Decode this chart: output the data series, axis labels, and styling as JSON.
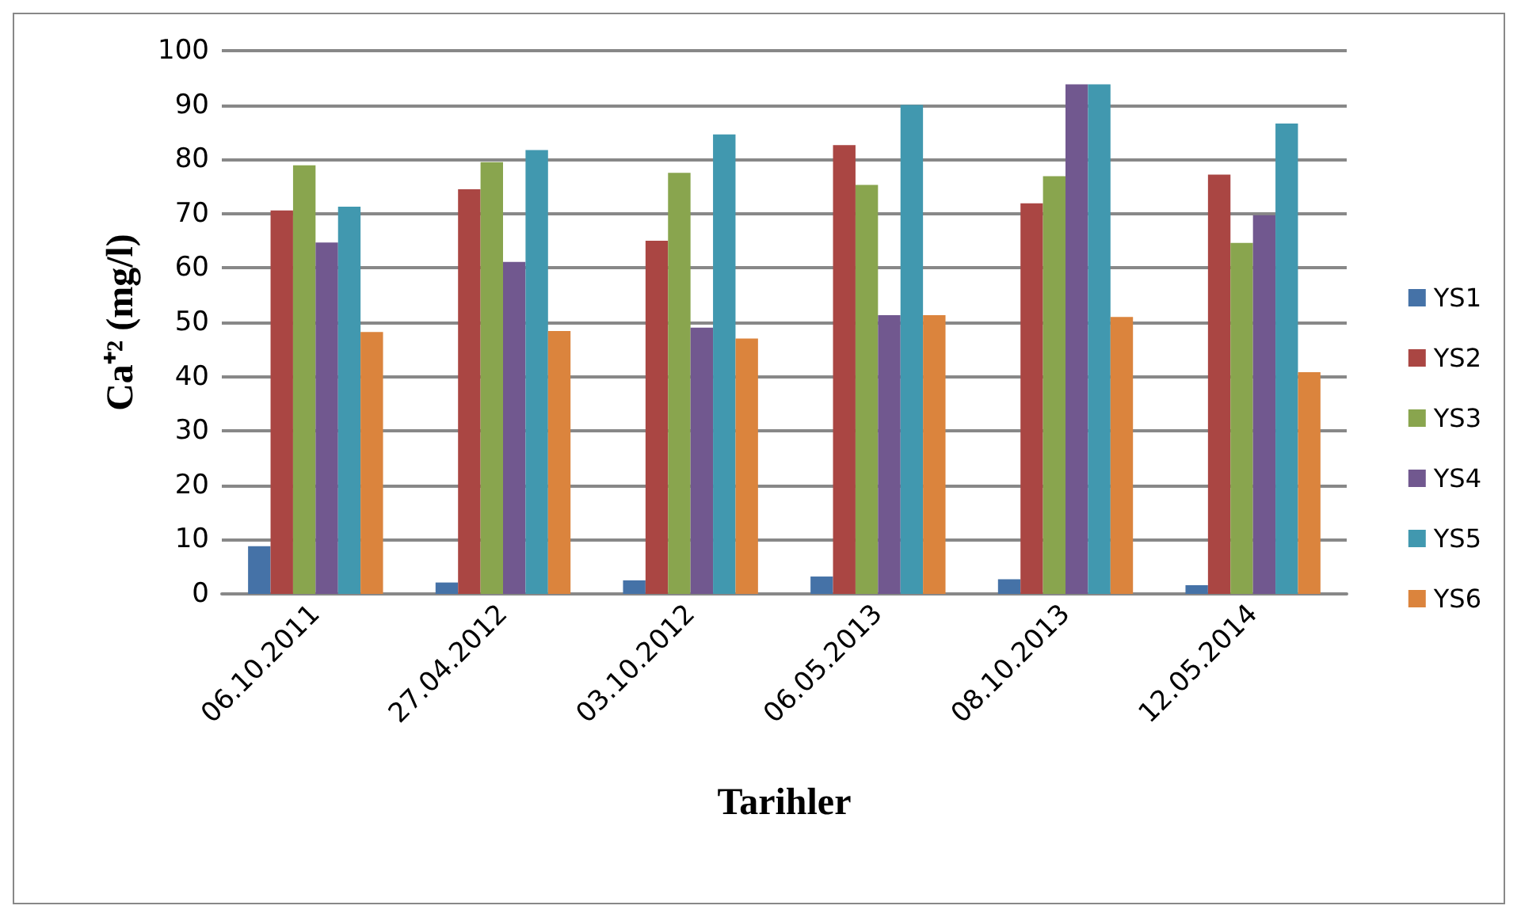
{
  "chart_data": {
    "type": "bar",
    "xlabel": "Tarihler",
    "ylabel": "Ca⁺² (mg/l)",
    "categories": [
      "06.10.2011",
      "27.04.2012",
      "03.10.2012",
      "06.05.2013",
      "08.10.2013",
      "12.05.2014"
    ],
    "series": [
      {
        "name": "YS1",
        "color": "#4572a7",
        "values": [
          8.8,
          2.1,
          2.5,
          3.2,
          2.7,
          1.6
        ]
      },
      {
        "name": "YS2",
        "color": "#aa4643",
        "values": [
          70.6,
          74.5,
          65.0,
          82.6,
          71.9,
          77.2
        ]
      },
      {
        "name": "YS3",
        "color": "#89a54e",
        "values": [
          78.9,
          79.5,
          77.5,
          75.3,
          76.9,
          64.6
        ]
      },
      {
        "name": "YS4",
        "color": "#71588f",
        "values": [
          64.7,
          61.1,
          49.0,
          51.3,
          93.8,
          69.7
        ]
      },
      {
        "name": "YS5",
        "color": "#4198af",
        "values": [
          71.3,
          81.7,
          84.6,
          90.0,
          93.8,
          86.6
        ]
      },
      {
        "name": "YS6",
        "color": "#db843d",
        "values": [
          48.2,
          48.4,
          47.0,
          51.3,
          51.0,
          40.8
        ]
      }
    ],
    "ylim": [
      0,
      100
    ],
    "yticks": [
      0,
      10,
      20,
      30,
      40,
      50,
      60,
      70,
      80,
      90,
      100
    ],
    "grid": "y",
    "legend": "right"
  }
}
